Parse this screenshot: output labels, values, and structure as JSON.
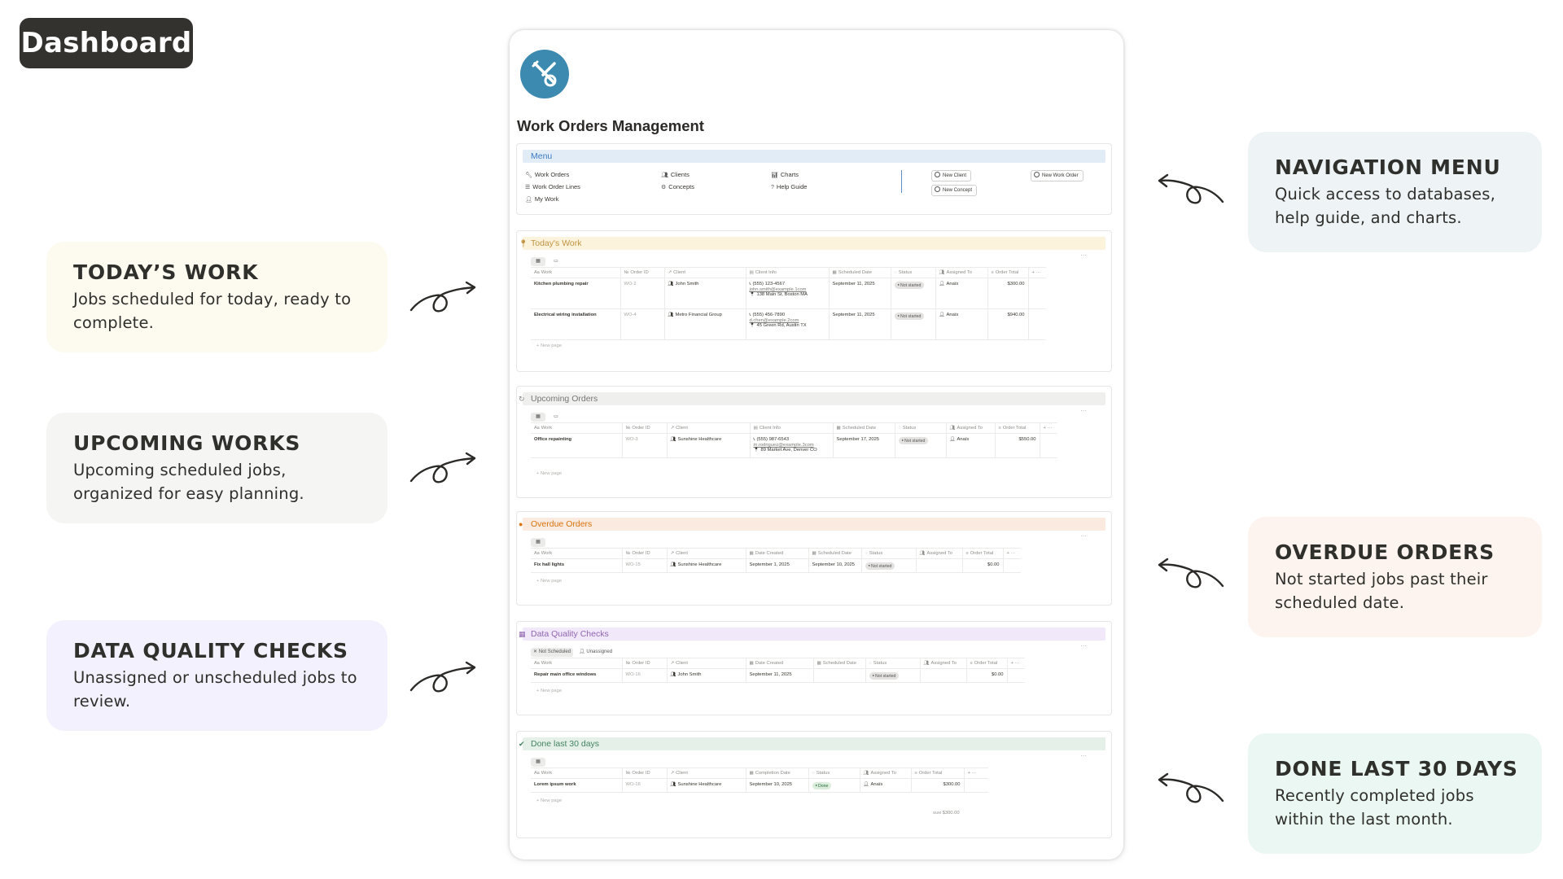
{
  "badge": "Dashboard",
  "callouts": {
    "todays_work": {
      "title": "TODAY’S WORK",
      "body": "Jobs scheduled for today, ready to complete."
    },
    "upcoming": {
      "title": "UPCOMING WORKS",
      "body": "Upcoming scheduled jobs, organized for easy planning."
    },
    "quality": {
      "title": "DATA QUALITY CHECKS",
      "body": "Unassigned or unscheduled jobs to review."
    },
    "navigation": {
      "title": "NAVIGATION MENU",
      "body": "Quick access to databases, help guide, and charts."
    },
    "overdue": {
      "title": "OVERDUE ORDERS",
      "body": "Not started jobs past their scheduled date."
    },
    "done": {
      "title": "DONE LAST 30 DAYS",
      "body": "Recently completed jobs within the last month."
    }
  },
  "colors": {
    "badge_bg": "#33322e",
    "todays_bg": "#fdfaf0",
    "upcoming_bg": "#f5f5f4",
    "quality_bg": "#f3f1fd",
    "navigation_bg": "#eef3f6",
    "overdue_bg": "#fdf4ef",
    "done_bg": "#ebf7f2",
    "logo": "#3d8ab0"
  },
  "page": {
    "title": "Work Orders Management",
    "logo_icon": "tools-icon"
  },
  "menu": {
    "label": "Menu",
    "items": [
      "Work Orders",
      "Work Order Lines",
      "My Work",
      "Clients",
      "Concepts",
      "Charts",
      "Help Guide"
    ],
    "buttons": {
      "new_client": "New Client",
      "new_concept": "New Concept",
      "new_work_order": "New Work Order"
    }
  },
  "headers": {
    "work": "Work",
    "order_id": "Order ID",
    "client": "Client",
    "client_info": "Client Info",
    "scheduled": "Scheduled Date",
    "status": "Status",
    "assigned": "Assigned To",
    "total": "Order Total",
    "date_created": "Date Created",
    "completion": "Completion Date"
  },
  "new_page": "New page",
  "todays": {
    "label": "Today's Work",
    "rows": [
      {
        "work": "Kitchen plumbing repair",
        "id": "WO-2",
        "client": "John Smith",
        "phone": "(555) 123-4567",
        "email": "john.smith@example.1com",
        "address": "138 Main St, Boston MA",
        "date": "September 11, 2025",
        "status": "Not started",
        "assigned": "Anaïs",
        "total": "$300.00"
      },
      {
        "work": "Electrical wiring installation",
        "id": "WO-4",
        "client": "Metro Financial Group",
        "phone": "(555) 456-7890",
        "email": "d.chen@example.2com",
        "address": "45 Green Rd, Austin TX",
        "date": "September 11, 2025",
        "status": "Not started",
        "assigned": "Anaïs",
        "total": "$940.00"
      }
    ]
  },
  "upcoming": {
    "label": "Upcoming Orders",
    "rows": [
      {
        "work": "Office repainting",
        "id": "WO-3",
        "client": "Sunshine Healthcare",
        "phone": "(555) 987-6543",
        "email": "m.rodriguez@example.3com",
        "address": "89 Market Ave, Denver CO",
        "date": "September 17, 2025",
        "status": "Not started",
        "assigned": "Anaïs",
        "total": "$550.00"
      }
    ]
  },
  "overdue": {
    "label": "Overdue Orders",
    "rows": [
      {
        "work": "Fix hall lights",
        "id": "WO-15",
        "client": "Sunshine Healthcare",
        "created": "September 1, 2025",
        "date": "September 10, 2025",
        "status": "Not started",
        "total": "$0.00"
      }
    ]
  },
  "quality": {
    "label": "Data Quality Checks",
    "tabs": [
      "Not Scheduled",
      "Unassigned"
    ],
    "rows": [
      {
        "work": "Repair main office windows",
        "id": "WO-16",
        "client": "John Smith",
        "created": "September 11, 2025",
        "status": "Not started",
        "total": "$0.00"
      }
    ]
  },
  "done": {
    "label": "Done last 30 days",
    "rows": [
      {
        "work": "Lorem ipsum work",
        "id": "WO-16",
        "client": "Sunshine Healthcare",
        "completion": "September 10, 2025",
        "status": "Done",
        "assigned": "Anaïs",
        "total": "$300.00"
      }
    ],
    "sum_label": "SUM",
    "sum_value": "$300.00"
  }
}
